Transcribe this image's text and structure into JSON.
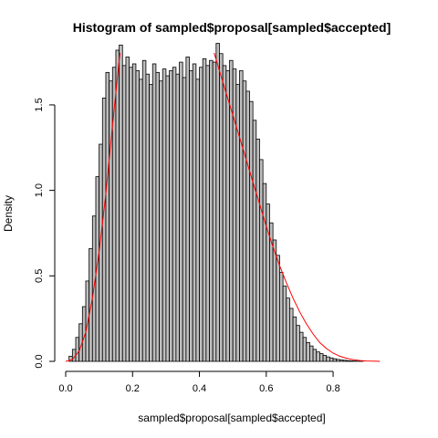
{
  "chart_data": {
    "type": "histogram",
    "title": "Histogram of sampled$proposal[sampled$accepted]",
    "xlabel": "sampled$proposal[sampled$accepted]",
    "ylabel": "Density",
    "xlim": [
      0.0,
      0.95
    ],
    "ylim": [
      0.0,
      1.9
    ],
    "x_ticks": [
      "0.0",
      "0.2",
      "0.4",
      "0.6",
      "0.8"
    ],
    "y_ticks": [
      "0.0",
      "0.5",
      "1.0",
      "1.5"
    ],
    "bin_width": 0.01,
    "bin_start": 0.0,
    "densities": [
      0.0,
      0.03,
      0.07,
      0.14,
      0.22,
      0.32,
      0.47,
      0.66,
      0.85,
      1.08,
      1.27,
      1.54,
      1.69,
      1.64,
      1.72,
      1.82,
      1.85,
      1.73,
      1.78,
      1.72,
      1.74,
      1.7,
      1.65,
      1.76,
      1.68,
      1.62,
      1.74,
      1.69,
      1.64,
      1.71,
      1.67,
      1.7,
      1.72,
      1.68,
      1.75,
      1.66,
      1.78,
      1.7,
      1.74,
      1.65,
      1.72,
      1.77,
      1.73,
      1.76,
      1.75,
      1.86,
      1.8,
      1.73,
      1.7,
      1.76,
      1.71,
      1.62,
      1.7,
      1.64,
      1.58,
      1.52,
      1.41,
      1.3,
      1.18,
      1.04,
      0.92,
      0.81,
      0.71,
      0.62,
      0.52,
      0.44,
      0.37,
      0.31,
      0.26,
      0.21,
      0.17,
      0.14,
      0.11,
      0.09,
      0.07,
      0.055,
      0.045,
      0.035,
      0.026,
      0.02,
      0.015,
      0.011,
      0.008,
      0.006,
      0.004,
      0.003,
      0.002,
      0.001,
      0.001,
      0.0
    ],
    "curves": [
      {
        "name": "rising-curve",
        "color": "#ff0000",
        "x": [
          0.0,
          0.02,
          0.04,
          0.06,
          0.08,
          0.1,
          0.12,
          0.14,
          0.16,
          0.17
        ],
        "y": [
          0.0,
          0.01,
          0.06,
          0.17,
          0.37,
          0.64,
          0.98,
          1.38,
          1.76,
          1.95
        ]
      },
      {
        "name": "falling-curve",
        "color": "#ff0000",
        "x": [
          0.42,
          0.44,
          0.46,
          0.48,
          0.5,
          0.52,
          0.54,
          0.56,
          0.58,
          0.6,
          0.62,
          0.64,
          0.66,
          0.68,
          0.7,
          0.72,
          0.74,
          0.76,
          0.78,
          0.8,
          0.82,
          0.84,
          0.86,
          0.88,
          0.9,
          0.92,
          0.94
        ],
        "y": [
          1.95,
          1.83,
          1.7,
          1.57,
          1.44,
          1.31,
          1.18,
          1.05,
          0.92,
          0.79,
          0.67,
          0.56,
          0.46,
          0.37,
          0.29,
          0.22,
          0.16,
          0.11,
          0.075,
          0.048,
          0.03,
          0.018,
          0.01,
          0.005,
          0.002,
          0.001,
          0.0
        ]
      }
    ],
    "bar_fill": "#bebebe",
    "bar_stroke": "#000000"
  }
}
